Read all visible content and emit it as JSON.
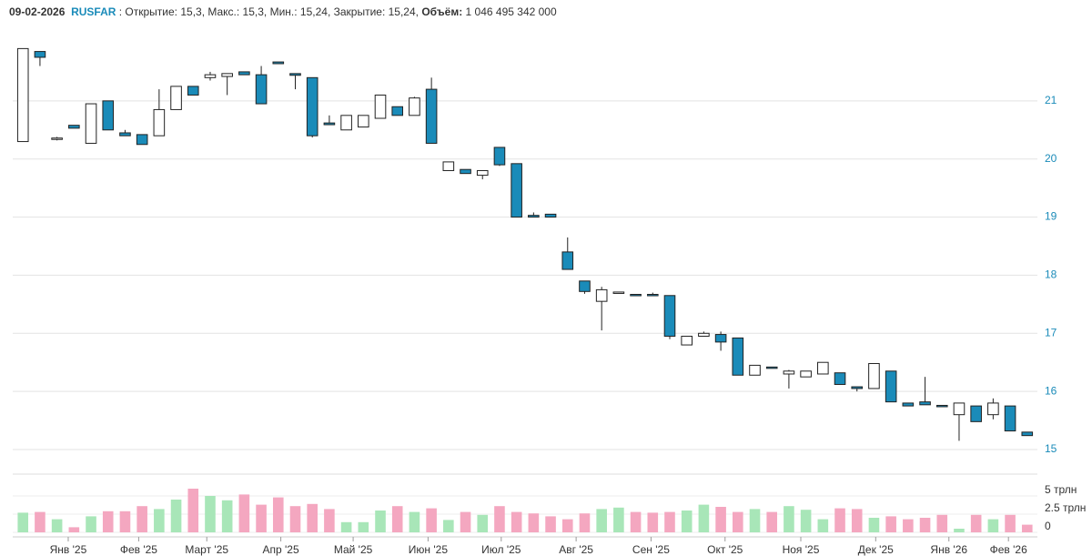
{
  "chart_data": {
    "type": "candlestick",
    "date": "09-02-2026",
    "ticker": "RUSFAR",
    "ticker_sep": " : ",
    "ohlc_text": "Открытие: 15,3, Макс.: 15,3, Мин.: 15,24, Закрытие: 15,24, ",
    "volume_label": "Объём:",
    "volume_text": " 1 046 495 342 000",
    "open": [
      20.3,
      21.85,
      20.34,
      20.58,
      20.27,
      21.0,
      20.45,
      20.42,
      20.4,
      20.85,
      21.25,
      21.4,
      21.42,
      21.5,
      21.45,
      21.67,
      21.47,
      21.4,
      20.62,
      20.5,
      20.55,
      20.7,
      20.9,
      20.75,
      21.2,
      19.8,
      19.82,
      19.72,
      20.2,
      19.92,
      19.03,
      19.05,
      18.4,
      17.9,
      17.55,
      17.7,
      17.67,
      17.67,
      17.65,
      16.8,
      16.95,
      16.98,
      16.92,
      16.28,
      16.42,
      16.3,
      16.25,
      16.3,
      16.32,
      16.08,
      16.05,
      16.35,
      15.8,
      15.82,
      15.76,
      15.6,
      15.75,
      15.6,
      15.75,
      15.3
    ],
    "high": [
      21.9,
      21.85,
      20.38,
      20.58,
      20.95,
      21.0,
      20.5,
      20.42,
      21.2,
      21.25,
      21.25,
      21.5,
      21.47,
      21.5,
      21.6,
      21.67,
      21.47,
      21.4,
      20.75,
      20.75,
      20.75,
      21.1,
      20.9,
      21.07,
      21.4,
      19.95,
      19.82,
      19.8,
      20.2,
      19.92,
      19.08,
      19.05,
      18.65,
      17.9,
      17.8,
      17.71,
      17.67,
      17.7,
      17.65,
      16.95,
      17.03,
      17.03,
      16.92,
      16.45,
      16.42,
      16.37,
      16.35,
      16.5,
      16.32,
      16.08,
      16.48,
      16.35,
      15.8,
      16.25,
      15.76,
      15.8,
      15.75,
      15.88,
      15.75,
      15.3
    ],
    "low": [
      20.3,
      21.6,
      20.32,
      20.53,
      20.27,
      20.5,
      20.4,
      20.25,
      20.4,
      20.85,
      21.1,
      21.35,
      21.1,
      21.45,
      20.95,
      21.64,
      21.2,
      20.37,
      20.59,
      20.5,
      20.55,
      20.7,
      20.75,
      20.75,
      20.27,
      19.8,
      19.75,
      19.65,
      19.88,
      19.0,
      19.0,
      19.0,
      18.1,
      17.68,
      17.05,
      17.7,
      17.65,
      17.65,
      16.9,
      16.8,
      16.95,
      16.7,
      16.28,
      16.28,
      16.4,
      16.05,
      16.25,
      16.3,
      16.12,
      16.0,
      16.05,
      15.82,
      15.75,
      15.77,
      15.74,
      15.15,
      15.48,
      15.52,
      15.32,
      15.24
    ],
    "close": [
      21.9,
      21.75,
      20.36,
      20.53,
      20.95,
      20.5,
      20.4,
      20.25,
      20.85,
      21.25,
      21.1,
      21.45,
      21.47,
      21.45,
      20.95,
      21.64,
      21.44,
      20.4,
      20.59,
      20.75,
      20.75,
      21.1,
      20.75,
      21.05,
      20.27,
      19.95,
      19.75,
      19.8,
      19.9,
      19.0,
      19.0,
      19.0,
      18.1,
      17.72,
      17.75,
      17.71,
      17.65,
      17.65,
      16.95,
      16.95,
      17.0,
      16.85,
      16.28,
      16.45,
      16.4,
      16.35,
      16.35,
      16.5,
      16.12,
      16.05,
      16.48,
      15.82,
      15.75,
      15.77,
      15.74,
      15.8,
      15.48,
      15.8,
      15.32,
      15.24
    ],
    "volume": [
      2.7,
      2.8,
      1.8,
      0.7,
      2.2,
      2.9,
      2.9,
      3.6,
      3.2,
      4.5,
      6.0,
      5.0,
      4.4,
      5.2,
      3.8,
      4.8,
      3.6,
      3.9,
      3.2,
      1.4,
      1.4,
      3.0,
      3.6,
      2.8,
      3.3,
      1.7,
      2.8,
      2.4,
      3.6,
      2.8,
      2.6,
      2.2,
      1.8,
      2.6,
      3.2,
      3.4,
      2.8,
      2.7,
      2.8,
      3.0,
      3.8,
      3.5,
      2.8,
      3.2,
      2.8,
      3.6,
      3.1,
      1.8,
      3.3,
      3.2,
      2.0,
      2.2,
      1.8,
      2.0,
      2.4,
      0.5,
      2.4,
      1.8,
      2.4,
      1.05
    ],
    "up_color": "#ffffff",
    "down_color": "#1a8bb9",
    "candle_edge": "#222222",
    "volume_up_color": "#a8e6b8",
    "volume_down_color": "#f4a7c0",
    "ylim": [
      15,
      22
    ],
    "yticks": [
      15,
      16,
      17,
      18,
      19,
      20,
      21
    ],
    "volume_ylim": [
      0,
      8
    ],
    "volume_yticks": [
      {
        "value": 5,
        "label": "5 трлн"
      },
      {
        "value": 2.5,
        "label": "2.5 трлн"
      },
      0
    ],
    "xlim": [
      -0.6,
      59.6
    ],
    "xticks": [
      {
        "value": 2.66,
        "label": "Янв '25"
      },
      {
        "value": 6.8,
        "label": "Фев '25"
      },
      {
        "value": 10.8,
        "label": "Март '25"
      },
      {
        "value": 15.15,
        "label": "Апр '25"
      },
      {
        "value": 19.4,
        "label": "Май '25"
      },
      {
        "value": 23.8,
        "label": "Июн '25"
      },
      {
        "value": 28.1,
        "label": "Июл '25"
      },
      {
        "value": 32.5,
        "label": "Авг '25"
      },
      {
        "value": 36.9,
        "label": "Сен '25"
      },
      {
        "value": 41.25,
        "label": "Окт '25"
      },
      {
        "value": 45.7,
        "label": "Ноя '25"
      },
      {
        "value": 50.1,
        "label": "Дек '25"
      },
      {
        "value": 54.4,
        "label": "Янв '26"
      },
      {
        "value": 57.9,
        "label": "Фев '26"
      }
    ],
    "grid": true
  }
}
